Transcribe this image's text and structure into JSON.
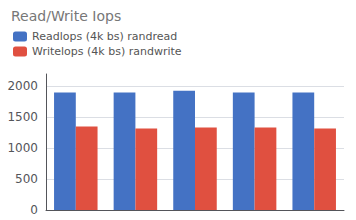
{
  "chart_data": {
    "type": "bar",
    "title": "Read/Write Iops",
    "categories": [
      null,
      null,
      null,
      null,
      null
    ],
    "series": [
      {
        "name": "Readlops (4k bs) randread",
        "color": "#4472C4",
        "values": [
          1900,
          1900,
          1930,
          1900,
          1900
        ]
      },
      {
        "name": "Writelops (4k bs) randwrite",
        "color": "#E05040",
        "values": [
          1350,
          1320,
          1335,
          1335,
          1320
        ]
      }
    ],
    "ylim": [
      0,
      2200
    ],
    "yticks": [
      0,
      500,
      1000,
      1500,
      2000
    ],
    "grid": true,
    "legend": "upper left",
    "tick_labels": "y"
  }
}
